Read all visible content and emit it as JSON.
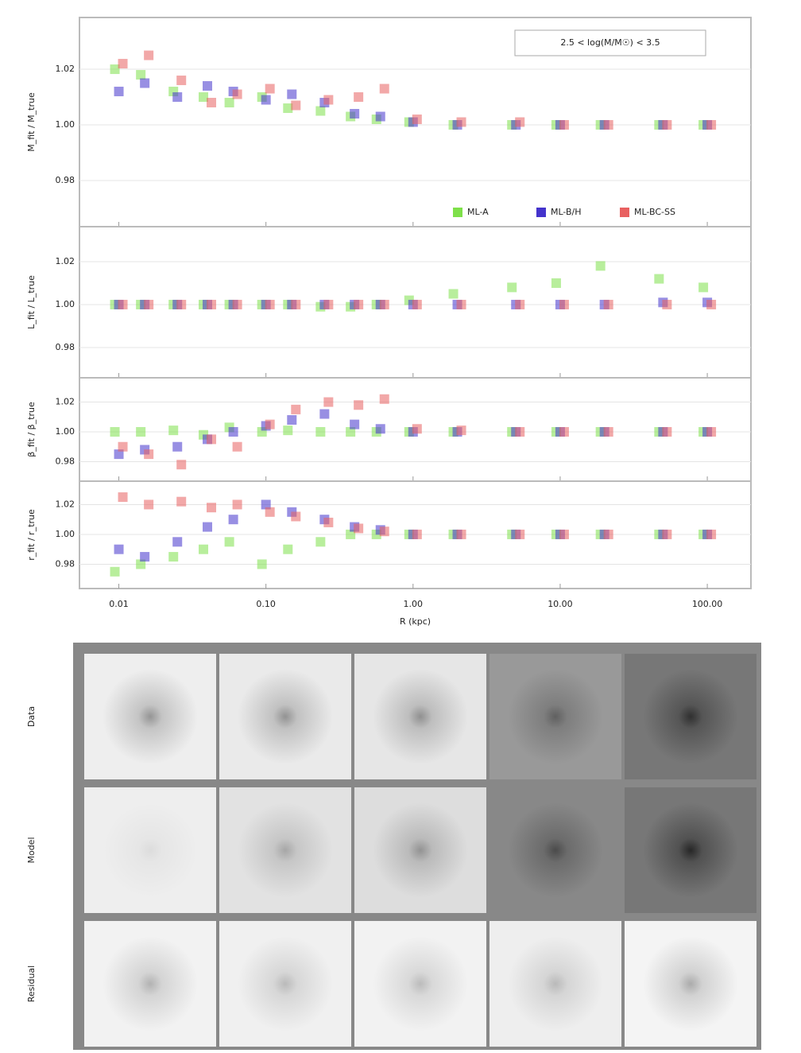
{
  "chart_data": [
    {
      "type": "scatter",
      "annotation": "2.5 < log(M/M☉) < 3.5",
      "ylabel": "M_fit / M_true",
      "xlim": [
        0.0054,
        198
      ],
      "xticks": [
        0.01,
        {
          "value": 0.1,
          "label": "0.10"
        },
        {
          "value": 1,
          "label": "1.00"
        },
        {
          "value": 10,
          "label": "10.00"
        },
        {
          "value": 100,
          "label": "100.00"
        }
      ],
      "log_x": true,
      "ylim": [
        0.9634,
        1.0386
      ],
      "yticks": [
        0.98,
        {
          "value": 1,
          "label": "1.00"
        },
        1.02
      ],
      "legend": "lower right",
      "x": [
        0.01,
        0.015,
        0.025,
        0.04,
        0.06,
        0.1,
        0.15,
        0.25,
        0.4,
        0.6,
        1,
        2,
        5,
        10,
        20,
        50,
        100
      ],
      "series": [
        {
          "name": "ML-A",
          "color": "#7ee04a",
          "values": [
            1.02,
            1.018,
            1.012,
            1.01,
            1.008,
            1.01,
            1.006,
            1.005,
            1.003,
            1.002,
            1.001,
            1.0,
            1.0,
            1.0,
            1.0,
            1.0,
            1.0
          ]
        },
        {
          "name": "ML-B/H",
          "color": "#4433cc",
          "values": [
            1.012,
            1.015,
            1.01,
            1.014,
            1.012,
            1.009,
            1.011,
            1.008,
            1.004,
            1.003,
            1.001,
            1.0,
            1.0,
            1.0,
            1.0,
            1.0,
            1.0
          ]
        },
        {
          "name": "ML-BC-SS",
          "color": "#e86060",
          "values": [
            1.022,
            1.025,
            1.016,
            1.008,
            1.011,
            1.013,
            1.007,
            1.009,
            1.01,
            1.013,
            1.002,
            1.001,
            1.001,
            1.0,
            1.0,
            1.0,
            1.0
          ]
        }
      ]
    },
    {
      "type": "scatter",
      "ylabel": "L_fit / L_true",
      "xlim": [
        0.0054,
        198
      ],
      "xticks": [
        0.01,
        {
          "value": 0.1,
          "label": "0.10"
        },
        {
          "value": 1,
          "label": "1.00"
        },
        {
          "value": 10,
          "label": "10.00"
        },
        {
          "value": 100,
          "label": "100.00"
        }
      ],
      "log_x": true,
      "ylim": [
        0.9659,
        1.0363
      ],
      "yticks": [
        0.98,
        {
          "value": 1,
          "label": "1.00"
        },
        1.02
      ],
      "x": [
        0.01,
        0.015,
        0.025,
        0.04,
        0.06,
        0.1,
        0.15,
        0.25,
        0.4,
        0.6,
        1,
        2,
        5,
        10,
        20,
        50,
        100
      ],
      "series": [
        {
          "color": "#7ee04a",
          "values": [
            1.0,
            1.0,
            1.0,
            1.0,
            1.0,
            1.0,
            1.0,
            0.999,
            0.999,
            1.0,
            1.002,
            1.005,
            1.008,
            1.01,
            1.018,
            1.012,
            1.008
          ]
        },
        {
          "color": "#4433cc",
          "values": [
            1.0,
            1.0,
            1.0,
            1.0,
            1.0,
            1.0,
            1.0,
            1.0,
            1.0,
            1.0,
            1.0,
            1.0,
            1.0,
            1.0,
            1.0,
            1.001,
            1.001
          ]
        },
        {
          "color": "#e86060",
          "values": [
            1.0,
            1.0,
            1.0,
            1.0,
            1.0,
            1.0,
            1.0,
            1.0,
            1.0,
            1.0,
            1.0,
            1.0,
            1.0,
            1.0,
            1.0,
            1.0,
            1.0
          ]
        }
      ]
    },
    {
      "type": "scatter",
      "ylabel": "β_fit / β_true",
      "xlim": [
        0.0054,
        198
      ],
      "xticks": [
        0.01,
        {
          "value": 0.1,
          "label": "0.10"
        },
        {
          "value": 1,
          "label": "1.00"
        },
        {
          "value": 10,
          "label": "10.00"
        },
        {
          "value": 100,
          "label": "100.00"
        }
      ],
      "log_x": true,
      "ylim": [
        0.9669,
        1.0363
      ],
      "yticks": [
        0.98,
        {
          "value": 1,
          "label": "1.00"
        },
        1.02
      ],
      "x": [
        0.01,
        0.015,
        0.025,
        0.04,
        0.06,
        0.1,
        0.15,
        0.25,
        0.4,
        0.6,
        1,
        2,
        5,
        10,
        20,
        50,
        100
      ],
      "series": [
        {
          "color": "#7ee04a",
          "values": [
            1.0,
            1.0,
            1.001,
            0.998,
            1.003,
            1.0,
            1.001,
            1.0,
            1.0,
            1.0,
            1.0,
            1.0,
            1.0,
            1.0,
            1.0,
            1.0,
            1.0
          ]
        },
        {
          "color": "#4433cc",
          "values": [
            0.985,
            0.988,
            0.99,
            0.995,
            1.0,
            1.004,
            1.008,
            1.012,
            1.005,
            1.002,
            1.0,
            1.0,
            1.0,
            1.0,
            1.0,
            1.0,
            1.0
          ]
        },
        {
          "color": "#e86060",
          "values": [
            0.99,
            0.985,
            0.978,
            0.995,
            0.99,
            1.005,
            1.015,
            1.02,
            1.018,
            1.022,
            1.002,
            1.001,
            1.0,
            1.0,
            1.0,
            1.0,
            1.0
          ]
        }
      ]
    },
    {
      "type": "scatter",
      "ylabel": "r_fit / r_true",
      "xlabel": "R (kpc)",
      "xlim": [
        0.0054,
        198
      ],
      "xticks": [
        0.01,
        {
          "value": 0.1,
          "label": "0.10"
        },
        {
          "value": 1,
          "label": "1.00"
        },
        {
          "value": 10,
          "label": "10.00"
        },
        {
          "value": 100,
          "label": "100.00"
        }
      ],
      "log_x": true,
      "ylim": [
        0.9637,
        1.0357
      ],
      "yticks": [
        0.98,
        {
          "value": 1,
          "label": "1.00"
        },
        1.02
      ],
      "x": [
        0.01,
        0.015,
        0.025,
        0.04,
        0.06,
        0.1,
        0.15,
        0.25,
        0.4,
        0.6,
        1,
        2,
        5,
        10,
        20,
        50,
        100
      ],
      "series": [
        {
          "color": "#7ee04a",
          "values": [
            0.975,
            0.98,
            0.985,
            0.99,
            0.995,
            0.98,
            0.99,
            0.995,
            1.0,
            1.0,
            1.0,
            1.0,
            1.0,
            1.0,
            1.0,
            1.0,
            1.0
          ]
        },
        {
          "color": "#4433cc",
          "values": [
            0.99,
            0.985,
            0.995,
            1.005,
            1.01,
            1.02,
            1.015,
            1.01,
            1.005,
            1.003,
            1.0,
            1.0,
            1.0,
            1.0,
            1.0,
            1.0,
            1.0
          ]
        },
        {
          "color": "#e86060",
          "values": [
            1.025,
            1.02,
            1.022,
            1.018,
            1.02,
            1.015,
            1.012,
            1.008,
            1.004,
            1.002,
            1.0,
            1.0,
            1.0,
            1.0,
            1.0,
            1.0,
            1.0
          ]
        }
      ]
    }
  ],
  "image_grid": {
    "row_labels": [
      "Data",
      "Model",
      "Residual"
    ]
  }
}
